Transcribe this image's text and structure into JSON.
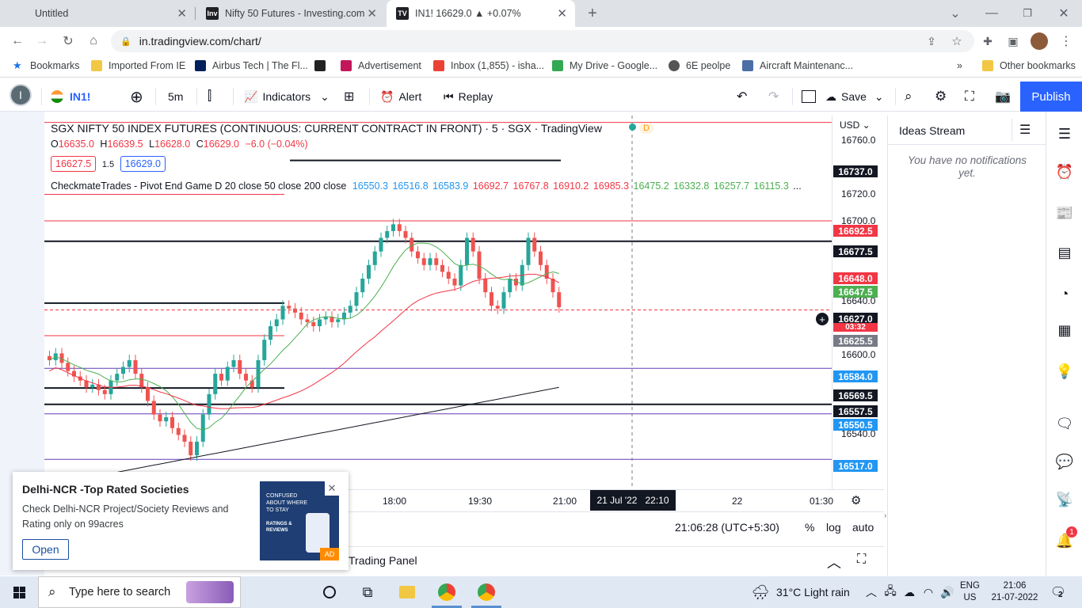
{
  "browser": {
    "tabs": [
      {
        "title": "Untitled",
        "favicon": ""
      },
      {
        "title": "Nifty 50 Futures - Investing.com",
        "favicon": "Inv"
      },
      {
        "title": "IN1! 16629.0 ▲ +0.07%",
        "favicon": "TV"
      }
    ],
    "url": "in.tradingview.com/chart/",
    "bookmarks": [
      {
        "label": "Bookmarks",
        "color": "#1a73e8"
      },
      {
        "label": "Imported From IE",
        "color": "#f2c744"
      },
      {
        "label": "Airbus Tech | The Fl...",
        "color": "#00205b"
      },
      {
        "label": "",
        "color": "#222222"
      },
      {
        "label": "Advertisement",
        "color": "#c2185b"
      },
      {
        "label": "Inbox (1,855) - isha...",
        "color": "#ea4335"
      },
      {
        "label": "My Drive - Google...",
        "color": "#34a853"
      },
      {
        "label": "6E peolpe",
        "color": "#555555"
      },
      {
        "label": "Aircraft Maintenanc...",
        "color": "#4a6fa5"
      }
    ],
    "other_bookmarks": "Other bookmarks"
  },
  "toolbar": {
    "symbol": "IN1!",
    "interval": "5m",
    "indicators": "Indicators",
    "alert": "Alert",
    "replay": "Replay",
    "save": "Save",
    "publish": "Publish"
  },
  "chart": {
    "title": "SGX NIFTY 50 INDEX FUTURES (CONTINUOUS: CURRENT CONTRACT IN FRONT) · 5 · SGX · TradingView",
    "badge": "D",
    "ohlc": {
      "o": "16635.0",
      "h": "16639.5",
      "l": "16628.0",
      "c": "16629.0",
      "chg": "−6.0 (−0.04%)"
    },
    "ohlc_prefix": {
      "o": "O",
      "h": "H",
      "l": "L",
      "c": "C"
    },
    "bid": "16627.5",
    "spread": "1.5",
    "ask": "16629.0",
    "indicator_name": "CheckmateTrades - Pivot End Game D 20 close 50 close 200 close",
    "indicator_values_blue": [
      "16550.3",
      "16516.8",
      "16583.9"
    ],
    "indicator_values_red": [
      "16692.7",
      "16767.8",
      "16910.2",
      "16985.3"
    ],
    "indicator_values_green": [
      "16475.2",
      "16332.8",
      "16257.7",
      "16115.3"
    ],
    "indicator_ellipsis": "...",
    "currency": "USD",
    "price_ticks": [
      "16760.0",
      "16720.0",
      "16700.0",
      "16640.0",
      "16600.0",
      "16540.0"
    ],
    "price_labels": [
      {
        "v": "16737.0",
        "bg": "#131722"
      },
      {
        "v": "16692.5",
        "bg": "#f23645"
      },
      {
        "v": "16677.5",
        "bg": "#131722"
      },
      {
        "v": "16648.0",
        "bg": "#f23645"
      },
      {
        "v": "16647.5",
        "bg": "#4caf50"
      },
      {
        "v": "16627.0",
        "bg": "#131722"
      },
      {
        "v": "16625.5",
        "bg": "#787b86"
      },
      {
        "v": "16584.0",
        "bg": "#2196f3"
      },
      {
        "v": "16569.5",
        "bg": "#131722"
      },
      {
        "v": "16557.5",
        "bg": "#131722"
      },
      {
        "v": "16550.5",
        "bg": "#2196f3"
      },
      {
        "v": "16517.0",
        "bg": "#2196f3"
      }
    ],
    "countdown": "03:32",
    "time_ticks": [
      "18:00",
      "19:30",
      "21:00",
      "22",
      "01:30"
    ],
    "crosshair_date": "21 Jul '22   22:10",
    "clock": "21:06:28 (UTC+5:30)",
    "scale_pct": "%",
    "scale_log": "log",
    "scale_auto": "auto",
    "trading_panel": "Trading Panel"
  },
  "chart_data": {
    "type": "candlestick",
    "title": "SGX NIFTY 50 INDEX FUTURES (CONTINUOUS: CURRENT CONTRACT IN FRONT) · 5 · SGX · TradingView",
    "interval": "5m",
    "ylim": [
      16500,
      16770
    ],
    "x_ticks": [
      "18:00",
      "19:30",
      "21:00",
      "22",
      "01:30"
    ],
    "candles_close": [
      16590,
      16595,
      16588,
      16582,
      16578,
      16575,
      16570,
      16572,
      16568,
      16565,
      16575,
      16580,
      16585,
      16590,
      16580,
      16570,
      16560,
      16550,
      16545,
      16548,
      16540,
      16535,
      16530,
      16520,
      16530,
      16550,
      16565,
      16580,
      16575,
      16585,
      16590,
      16580,
      16575,
      16570,
      16590,
      16605,
      16615,
      16620,
      16630,
      16628,
      16625,
      16620,
      16618,
      16615,
      16620,
      16622,
      16618,
      16620,
      16625,
      16630,
      16640,
      16650,
      16660,
      16670,
      16680,
      16685,
      16690,
      16685,
      16680,
      16670,
      16665,
      16660,
      16665,
      16660,
      16655,
      16650,
      16645,
      16660,
      16680,
      16670,
      16650,
      16640,
      16630,
      16628,
      16640,
      16650,
      16645,
      16660,
      16680,
      16670,
      16660,
      16650,
      16640,
      16629
    ],
    "series": [
      {
        "name": "20",
        "color": "#4caf50",
        "values": [
          16575,
          16672,
          16650
        ]
      },
      {
        "name": "50",
        "color": "#f23645",
        "values": [
          16545,
          16630,
          16648
        ]
      },
      {
        "name": "200",
        "color": "#131722",
        "values": [
          16500,
          16545,
          16570
        ]
      }
    ]
  },
  "ideas": {
    "title": "Ideas Stream",
    "empty": "You have no notifications yet."
  },
  "ad": {
    "title": "Delhi-NCR -Top Rated Societies",
    "body": "Check Delhi-NCR Project/Society Reviews and Rating only on 99acres",
    "cta": "Open",
    "image_text_1": "CONFUSED ABOUT WHERE TO STAY",
    "image_text_2": "RATINGS & REVIEWS",
    "badge": "AD"
  },
  "taskbar": {
    "search_placeholder": "Type here to search",
    "weather": "31°C  Light rain",
    "lang1": "ENG",
    "lang2": "US",
    "time": "21:06",
    "date": "21-07-2022",
    "notif_count": "2"
  }
}
